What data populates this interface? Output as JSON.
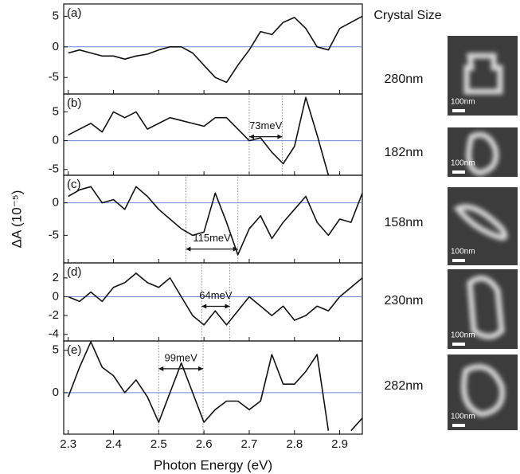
{
  "chart_data": [
    {
      "type": "line",
      "panel_label": "(a)",
      "xlim": [
        2.29,
        2.95
      ],
      "ylim": [
        -7.7,
        7
      ],
      "yticks": [
        -5,
        0,
        5
      ],
      "zero_line_color": "#6f84d6",
      "x": [
        2.3,
        2.325,
        2.35,
        2.375,
        2.4,
        2.425,
        2.45,
        2.475,
        2.5,
        2.525,
        2.55,
        2.575,
        2.6,
        2.625,
        2.65,
        2.675,
        2.7,
        2.725,
        2.75,
        2.775,
        2.8,
        2.825,
        2.85,
        2.875,
        2.9,
        2.925,
        2.95
      ],
      "series": [
        {
          "color": "#111111",
          "values": [
            -1,
            -0.5,
            -1,
            -1.5,
            -1.5,
            -2,
            -1.5,
            -1.2,
            -0.5,
            0,
            0,
            -1,
            -3,
            -5,
            -5.8,
            -3,
            -0.5,
            2.5,
            2,
            4,
            4.8,
            3,
            0,
            -0.5,
            3,
            4,
            5
          ]
        }
      ]
    },
    {
      "type": "line",
      "panel_label": "(b)",
      "xlim": [
        2.29,
        2.95
      ],
      "ylim": [
        -6,
        8.1
      ],
      "yticks": [
        -5,
        0,
        5
      ],
      "zero_line_color": "#6f84d6",
      "annotation": {
        "text": "73meV",
        "x": [
          2.7,
          2.773
        ]
      },
      "x": [
        2.3,
        2.325,
        2.35,
        2.375,
        2.4,
        2.425,
        2.45,
        2.475,
        2.5,
        2.525,
        2.55,
        2.575,
        2.6,
        2.625,
        2.65,
        2.675,
        2.7,
        2.725,
        2.75,
        2.775,
        2.8,
        2.825,
        2.85,
        2.875,
        2.9,
        2.925,
        2.95
      ],
      "series": [
        {
          "color": "#111111",
          "values": [
            1,
            2,
            3,
            1.5,
            5,
            4,
            5,
            2,
            3,
            4,
            3.5,
            3,
            2.5,
            4,
            4,
            2,
            0,
            0.5,
            -2,
            -4,
            -1,
            7.5,
            1,
            -6,
            null,
            null,
            null
          ]
        }
      ]
    },
    {
      "type": "line",
      "panel_label": "(c)",
      "xlim": [
        2.29,
        2.95
      ],
      "ylim": [
        -9.25,
        4.25
      ],
      "yticks": [
        -5,
        0
      ],
      "zero_line_color": "#6f84d6",
      "annotation": {
        "text": "115meV",
        "x": [
          2.56,
          2.675
        ]
      },
      "x": [
        2.3,
        2.325,
        2.35,
        2.375,
        2.4,
        2.425,
        2.45,
        2.475,
        2.5,
        2.525,
        2.55,
        2.575,
        2.6,
        2.625,
        2.65,
        2.675,
        2.7,
        2.725,
        2.75,
        2.775,
        2.8,
        2.825,
        2.85,
        2.875,
        2.9,
        2.925,
        2.95
      ],
      "series": [
        {
          "color": "#111111",
          "values": [
            1,
            2,
            2.5,
            0,
            0.5,
            -1,
            2.5,
            1,
            -1,
            -2.5,
            -4,
            -5,
            -4.5,
            1.5,
            -3,
            -8,
            -4,
            -2,
            -5.5,
            -3,
            -1,
            1,
            -3,
            -5,
            -2.5,
            -3,
            1.5
          ]
        }
      ]
    },
    {
      "type": "line",
      "panel_label": "(d)",
      "xlim": [
        2.29,
        2.95
      ],
      "ylim": [
        -4.7,
        3.6
      ],
      "yticks": [
        -4,
        -2,
        0,
        2
      ],
      "zero_line_color": "#6f84d6",
      "annotation": {
        "text": "64meV",
        "x": [
          2.595,
          2.657
        ]
      },
      "x": [
        2.3,
        2.325,
        2.35,
        2.375,
        2.4,
        2.425,
        2.45,
        2.475,
        2.5,
        2.525,
        2.55,
        2.575,
        2.6,
        2.625,
        2.65,
        2.675,
        2.7,
        2.725,
        2.75,
        2.775,
        2.8,
        2.825,
        2.85,
        2.875,
        2.9,
        2.925,
        2.95
      ],
      "series": [
        {
          "color": "#111111",
          "values": [
            0,
            -0.5,
            0.5,
            -0.5,
            1,
            1.5,
            2.5,
            1.5,
            1,
            2,
            0,
            -2,
            -3,
            -1.5,
            -3,
            -1.5,
            0,
            -1,
            -2,
            -1,
            -2.5,
            -2,
            -1,
            -1.5,
            0,
            1,
            2
          ]
        }
      ]
    },
    {
      "type": "line",
      "panel_label": "(e)",
      "xlim": [
        2.29,
        2.95
      ],
      "ylim": [
        -4.9,
        6.1
      ],
      "yticks": [
        0,
        5
      ],
      "zero_line_color": "#6f84d6",
      "annotation": {
        "text": "99meV",
        "x": [
          2.5,
          2.598
        ]
      },
      "xticks": [
        2.3,
        2.4,
        2.5,
        2.6,
        2.7,
        2.8,
        2.9
      ],
      "xlabel": "Photon Energy (eV)",
      "x": [
        2.3,
        2.325,
        2.35,
        2.375,
        2.4,
        2.425,
        2.45,
        2.475,
        2.5,
        2.525,
        2.55,
        2.575,
        2.6,
        2.625,
        2.65,
        2.675,
        2.7,
        2.725,
        2.75,
        2.775,
        2.8,
        2.825,
        2.85,
        2.875,
        2.9,
        2.925,
        2.95
      ],
      "series": [
        {
          "color": "#111111",
          "values": [
            -0.5,
            3,
            6,
            3,
            2,
            0,
            1.5,
            -0.5,
            -3.5,
            0,
            3.5,
            0,
            -3.5,
            -2,
            -1,
            -1,
            -2,
            -1,
            4.5,
            1,
            1,
            2.5,
            4.5,
            -4.5,
            null,
            -4.5,
            -3
          ]
        }
      ]
    }
  ],
  "ylabel": "ΔA (10⁻⁵)",
  "size_header": "Crystal Size",
  "crystals": [
    {
      "size": "280nm",
      "scale": "100nm"
    },
    {
      "size": "182nm",
      "scale": "100nm"
    },
    {
      "size": "158nm",
      "scale": "100nm"
    },
    {
      "size": "230nm",
      "scale": "100nm"
    },
    {
      "size": "282nm",
      "scale": "100nm"
    }
  ]
}
